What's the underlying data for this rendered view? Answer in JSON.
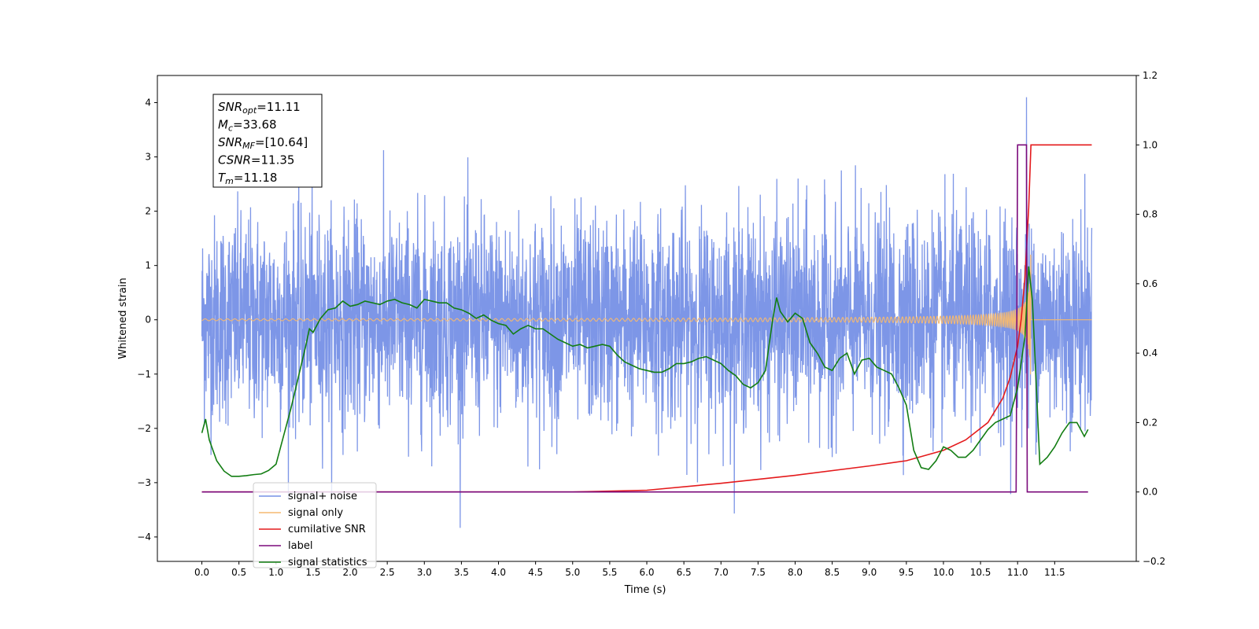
{
  "figure": {
    "background": "#ffffff"
  },
  "chart_data": {
    "type": "line",
    "title": "",
    "xlabel": "Time (s)",
    "ylabel": "Whitened strain",
    "xlim": [
      -0.6,
      12.6
    ],
    "ylim": [
      -4.45,
      4.5
    ],
    "y2lim": [
      -0.2,
      1.2
    ],
    "x_ticks": [
      "0.0",
      "0.5",
      "1.0",
      "1.5",
      "2.0",
      "2.5",
      "3.0",
      "3.5",
      "4.0",
      "4.5",
      "5.0",
      "5.5",
      "6.0",
      "6.5",
      "7.0",
      "7.5",
      "8.0",
      "8.5",
      "9.0",
      "9.5",
      "10.0",
      "10.5",
      "11.0",
      "11.5"
    ],
    "y_ticks": [
      "4",
      "3",
      "2",
      "1",
      "0",
      "−1",
      "−2",
      "−3",
      "−4"
    ],
    "y2_ticks": [
      "1.2",
      "1.0",
      "0.8",
      "0.6",
      "0.4",
      "0.2",
      "0.0",
      "−0.2"
    ],
    "grid": false,
    "legend_position": "lower-left",
    "annotation": {
      "lines": [
        {
          "sym": "SNR",
          "sub": "opt",
          "value": "=11.11"
        },
        {
          "sym": "M",
          "sub": "c",
          "value": "=33.68"
        },
        {
          "sym": "SNR",
          "sub": "MF",
          "value": "=[10.64]"
        },
        {
          "sym": "CSNR",
          "sub": "",
          "value": "=11.35"
        },
        {
          "sym": "T",
          "sub": "m",
          "value": "=11.18"
        }
      ]
    },
    "series": [
      {
        "name": "signal+ noise",
        "color": "#7690e6",
        "axis": "left",
        "kind": "noisy strain, approx. range -4 to 4.1",
        "x_range": [
          0.0,
          12.0
        ],
        "sigma": 0.95,
        "peak": {
          "x": 11.12,
          "y": 4.1
        }
      },
      {
        "name": "signal only",
        "color": "#f5b971",
        "axis": "left",
        "kind": "chirp ending at merger",
        "x_range": [
          0.0,
          12.0
        ],
        "merger_time": 11.18,
        "peak_amplitude": 1.8
      },
      {
        "name": "cumilative SNR",
        "color": "#e41a1c",
        "axis": "right",
        "x": [
          0.0,
          5.0,
          6.0,
          7.0,
          8.0,
          9.0,
          9.5,
          10.0,
          10.3,
          10.6,
          10.8,
          10.9,
          11.0,
          11.05,
          11.1,
          11.15,
          11.18,
          12.0
        ],
        "values": [
          0.0,
          0.0,
          0.005,
          0.025,
          0.048,
          0.075,
          0.09,
          0.12,
          0.15,
          0.2,
          0.27,
          0.33,
          0.42,
          0.5,
          0.62,
          0.82,
          1.0,
          1.0
        ]
      },
      {
        "name": "label",
        "color": "#7b0a7b",
        "axis": "right",
        "x": [
          0.0,
          10.98,
          11.0,
          11.12,
          11.13,
          11.95
        ],
        "values": [
          0.0,
          0.0,
          1.0,
          1.0,
          0.0,
          0.0
        ]
      },
      {
        "name": "signal statistics",
        "color": "#127d12",
        "axis": "right",
        "x": [
          0.0,
          0.05,
          0.1,
          0.2,
          0.3,
          0.4,
          0.5,
          0.6,
          0.7,
          0.8,
          0.9,
          1.0,
          1.1,
          1.2,
          1.3,
          1.4,
          1.45,
          1.5,
          1.6,
          1.7,
          1.8,
          1.9,
          2.0,
          2.1,
          2.2,
          2.3,
          2.4,
          2.5,
          2.6,
          2.7,
          2.8,
          2.9,
          3.0,
          3.1,
          3.2,
          3.3,
          3.4,
          3.5,
          3.6,
          3.7,
          3.8,
          3.9,
          4.0,
          4.1,
          4.2,
          4.3,
          4.4,
          4.5,
          4.6,
          4.7,
          4.8,
          4.9,
          5.0,
          5.1,
          5.2,
          5.3,
          5.4,
          5.5,
          5.6,
          5.7,
          5.8,
          5.9,
          6.0,
          6.1,
          6.2,
          6.3,
          6.4,
          6.5,
          6.6,
          6.7,
          6.8,
          6.9,
          7.0,
          7.1,
          7.2,
          7.3,
          7.4,
          7.5,
          7.6,
          7.7,
          7.75,
          7.8,
          7.9,
          8.0,
          8.1,
          8.2,
          8.3,
          8.4,
          8.5,
          8.6,
          8.7,
          8.8,
          8.9,
          9.0,
          9.1,
          9.2,
          9.3,
          9.4,
          9.5,
          9.6,
          9.7,
          9.8,
          9.9,
          10.0,
          10.1,
          10.2,
          10.3,
          10.4,
          10.5,
          10.6,
          10.7,
          10.8,
          10.9,
          11.0,
          11.1,
          11.15,
          11.2,
          11.3,
          11.4,
          11.5,
          11.6,
          11.7,
          11.8,
          11.9,
          11.95
        ],
        "values": [
          0.17,
          0.21,
          0.15,
          0.09,
          0.06,
          0.045,
          0.045,
          0.047,
          0.05,
          0.052,
          0.062,
          0.08,
          0.16,
          0.24,
          0.33,
          0.42,
          0.47,
          0.46,
          0.5,
          0.525,
          0.53,
          0.55,
          0.535,
          0.54,
          0.55,
          0.545,
          0.54,
          0.55,
          0.555,
          0.545,
          0.54,
          0.53,
          0.555,
          0.55,
          0.545,
          0.545,
          0.53,
          0.525,
          0.515,
          0.5,
          0.51,
          0.495,
          0.485,
          0.48,
          0.455,
          0.47,
          0.48,
          0.47,
          0.47,
          0.455,
          0.44,
          0.43,
          0.42,
          0.425,
          0.415,
          0.42,
          0.425,
          0.42,
          0.395,
          0.375,
          0.365,
          0.355,
          0.35,
          0.345,
          0.345,
          0.355,
          0.37,
          0.37,
          0.375,
          0.385,
          0.39,
          0.38,
          0.37,
          0.35,
          0.335,
          0.31,
          0.3,
          0.315,
          0.35,
          0.5,
          0.56,
          0.52,
          0.49,
          0.515,
          0.5,
          0.43,
          0.4,
          0.36,
          0.35,
          0.385,
          0.4,
          0.34,
          0.38,
          0.385,
          0.36,
          0.35,
          0.34,
          0.3,
          0.25,
          0.12,
          0.07,
          0.065,
          0.09,
          0.13,
          0.12,
          0.1,
          0.1,
          0.12,
          0.15,
          0.18,
          0.2,
          0.21,
          0.22,
          0.3,
          0.45,
          0.65,
          0.55,
          0.08,
          0.1,
          0.13,
          0.17,
          0.2,
          0.2,
          0.16,
          0.18
        ]
      }
    ]
  }
}
